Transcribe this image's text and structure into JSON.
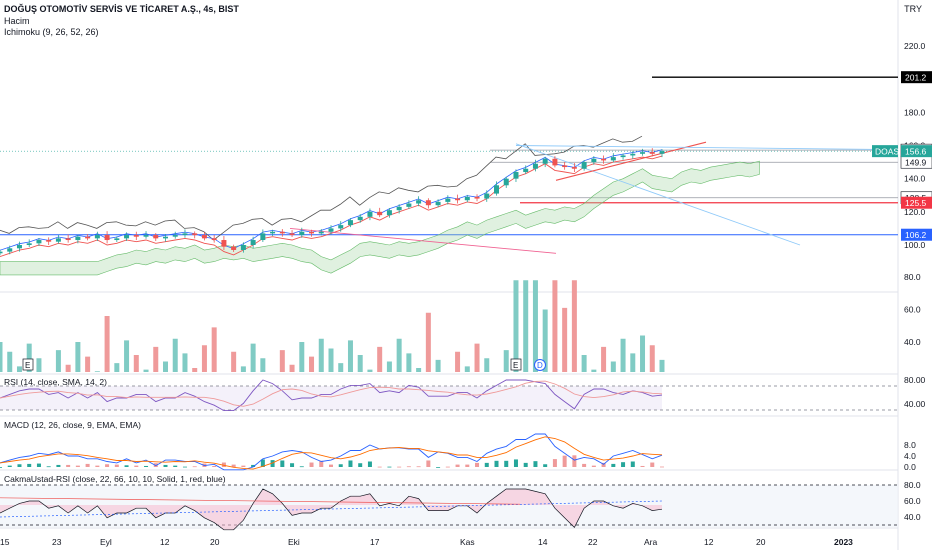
{
  "header": {
    "title": "DOĞUŞ OTOMOTİV SERVİS VE TİCARET A.Ş., 4s, BIST",
    "indicator_volume": "Hacim",
    "indicator_ichimoku": "Ichimoku (9, 26, 52, 26)",
    "currency": "TRY"
  },
  "panes": {
    "rsi_label": "RSI (14, close, SMA, 14, 2)",
    "macd_label": "MACD (12, 26, close, 9, EMA, EMA)",
    "cakma_label": "CakmaUstad-RSI (close, 22, 66, 10, 10, Solid, 1, red, blue)"
  },
  "colors": {
    "up": "#26a69a",
    "down": "#ef5350",
    "price_tag": "#26a69a",
    "red_level": "#f23645",
    "blue_level": "#2962ff",
    "black_level": "#000000",
    "cloud": "#a5d6a7"
  },
  "chart_data": [
    {
      "type": "candlestick",
      "name": "price",
      "ylim": [
        80,
        240
      ],
      "y_ticks": [
        100.0,
        120.0,
        140.0,
        160.0,
        180.0,
        200.0,
        220.0
      ],
      "x_ticks": [
        "15",
        "23",
        "Eyl",
        "12",
        "20",
        "Eki",
        "17",
        "Kas",
        "14",
        "22",
        "Ara",
        "12",
        "20",
        "2023"
      ],
      "close_path": [
        96,
        98,
        100,
        101,
        103,
        102,
        104,
        103,
        105,
        104,
        106,
        103,
        104,
        106,
        105,
        106,
        104,
        105,
        106,
        107,
        106,
        104,
        103,
        99,
        97,
        100,
        103,
        107,
        108,
        107,
        106,
        108,
        107,
        108,
        110,
        112,
        115,
        117,
        120,
        118,
        121,
        123,
        125,
        127,
        124,
        126,
        128,
        127,
        129,
        128,
        131,
        136,
        140,
        144,
        146,
        149,
        152,
        148,
        147,
        146,
        150,
        152,
        151,
        153,
        154,
        155,
        156,
        155,
        156.6
      ],
      "price_tag": {
        "label": "DOAS",
        "value": "156.6"
      },
      "levels": [
        {
          "value": "201.2",
          "style": "black"
        },
        {
          "value": "157.2",
          "style": "gray"
        },
        {
          "value": "149.9",
          "style": "gray"
        },
        {
          "value": "128.5",
          "style": "gray"
        },
        {
          "value": "125.5",
          "style": "red"
        },
        {
          "value": "106.2",
          "style": "blue"
        }
      ],
      "markers": [
        "E",
        "E",
        "D"
      ]
    },
    {
      "type": "bar",
      "name": "volume",
      "y_ticks": [
        40.0,
        60.0,
        80.0
      ]
    },
    {
      "type": "line",
      "name": "rsi",
      "y_ticks": [
        80.0,
        40.0
      ]
    },
    {
      "type": "line",
      "name": "macd",
      "y_ticks": [
        8.0,
        4.0,
        0.0
      ]
    },
    {
      "type": "area",
      "name": "cakma_rsi",
      "y_ticks": [
        80.0,
        60.0,
        40.0
      ]
    }
  ]
}
